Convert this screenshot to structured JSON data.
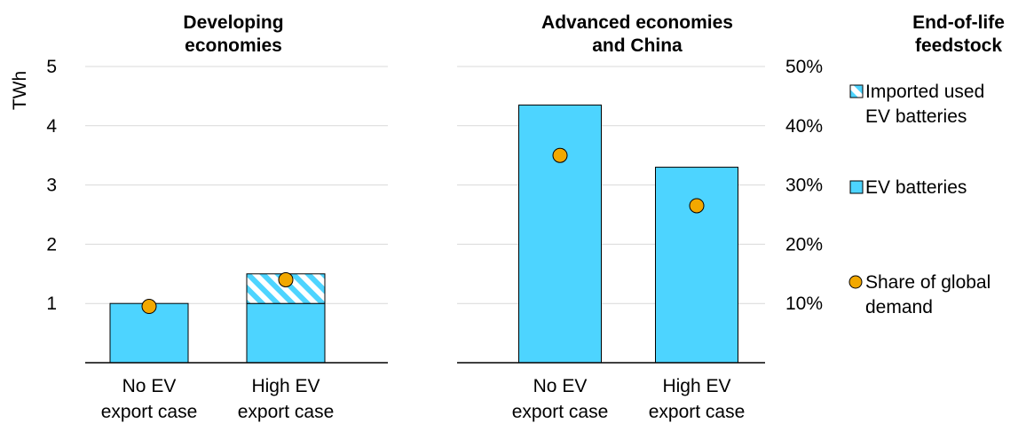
{
  "chart_data": [
    {
      "type": "bar",
      "title": [
        "Developing",
        "economies"
      ],
      "categories": [
        [
          "No EV",
          "export case"
        ],
        [
          "High EV",
          "export case"
        ]
      ],
      "ylabel": "TWh",
      "ylim": [
        0,
        5
      ],
      "yticks": [
        "1",
        "2",
        "3",
        "4",
        "5"
      ],
      "stacked": true,
      "series": [
        {
          "name": "EV batteries",
          "values": [
            1.0,
            1.0
          ],
          "color": "#4dd4ff",
          "pattern": "solid"
        },
        {
          "name": "Imported used EV batteries",
          "values": [
            0,
            0.5
          ],
          "color": "#4dd4ff",
          "pattern": "diagonal-stripes"
        }
      ],
      "markers": {
        "name": "Share of global demand",
        "values": [
          0.095,
          0.14
        ],
        "color": "#f2a800",
        "axis": "secondary",
        "ylim": [
          0,
          0.5
        ]
      },
      "grid": true
    },
    {
      "type": "bar",
      "title": [
        "Advanced economies",
        "and China"
      ],
      "categories": [
        [
          "No EV",
          "export case"
        ],
        [
          "High EV",
          "export case"
        ]
      ],
      "ylim": [
        0,
        5
      ],
      "stacked": true,
      "series": [
        {
          "name": "EV batteries",
          "values": [
            4.35,
            3.3
          ],
          "color": "#4dd4ff",
          "pattern": "solid"
        },
        {
          "name": "Imported used EV batteries",
          "values": [
            0,
            0
          ],
          "color": "#4dd4ff",
          "pattern": "diagonal-stripes"
        }
      ],
      "markers": {
        "name": "Share of global demand",
        "values": [
          0.35,
          0.265
        ],
        "color": "#f2a800",
        "axis": "secondary",
        "ylim": [
          0,
          0.5
        ]
      },
      "secondary_yticks": [
        "10%",
        "20%",
        "30%",
        "40%",
        "50%"
      ],
      "grid": true
    }
  ],
  "legend": {
    "title": [
      "End-of-life",
      "feedstock"
    ],
    "items": [
      {
        "label": [
          "Imported used",
          "EV batteries"
        ],
        "symbol": "square-striped"
      },
      {
        "label": [
          "EV batteries"
        ],
        "symbol": "square-solid"
      },
      {
        "label": [
          "Share of global",
          "demand"
        ],
        "symbol": "circle"
      }
    ]
  },
  "colors": {
    "bar": "#4dd4ff",
    "marker": "#f2a800",
    "grid": "#d9d9d9",
    "axis": "#000000"
  }
}
